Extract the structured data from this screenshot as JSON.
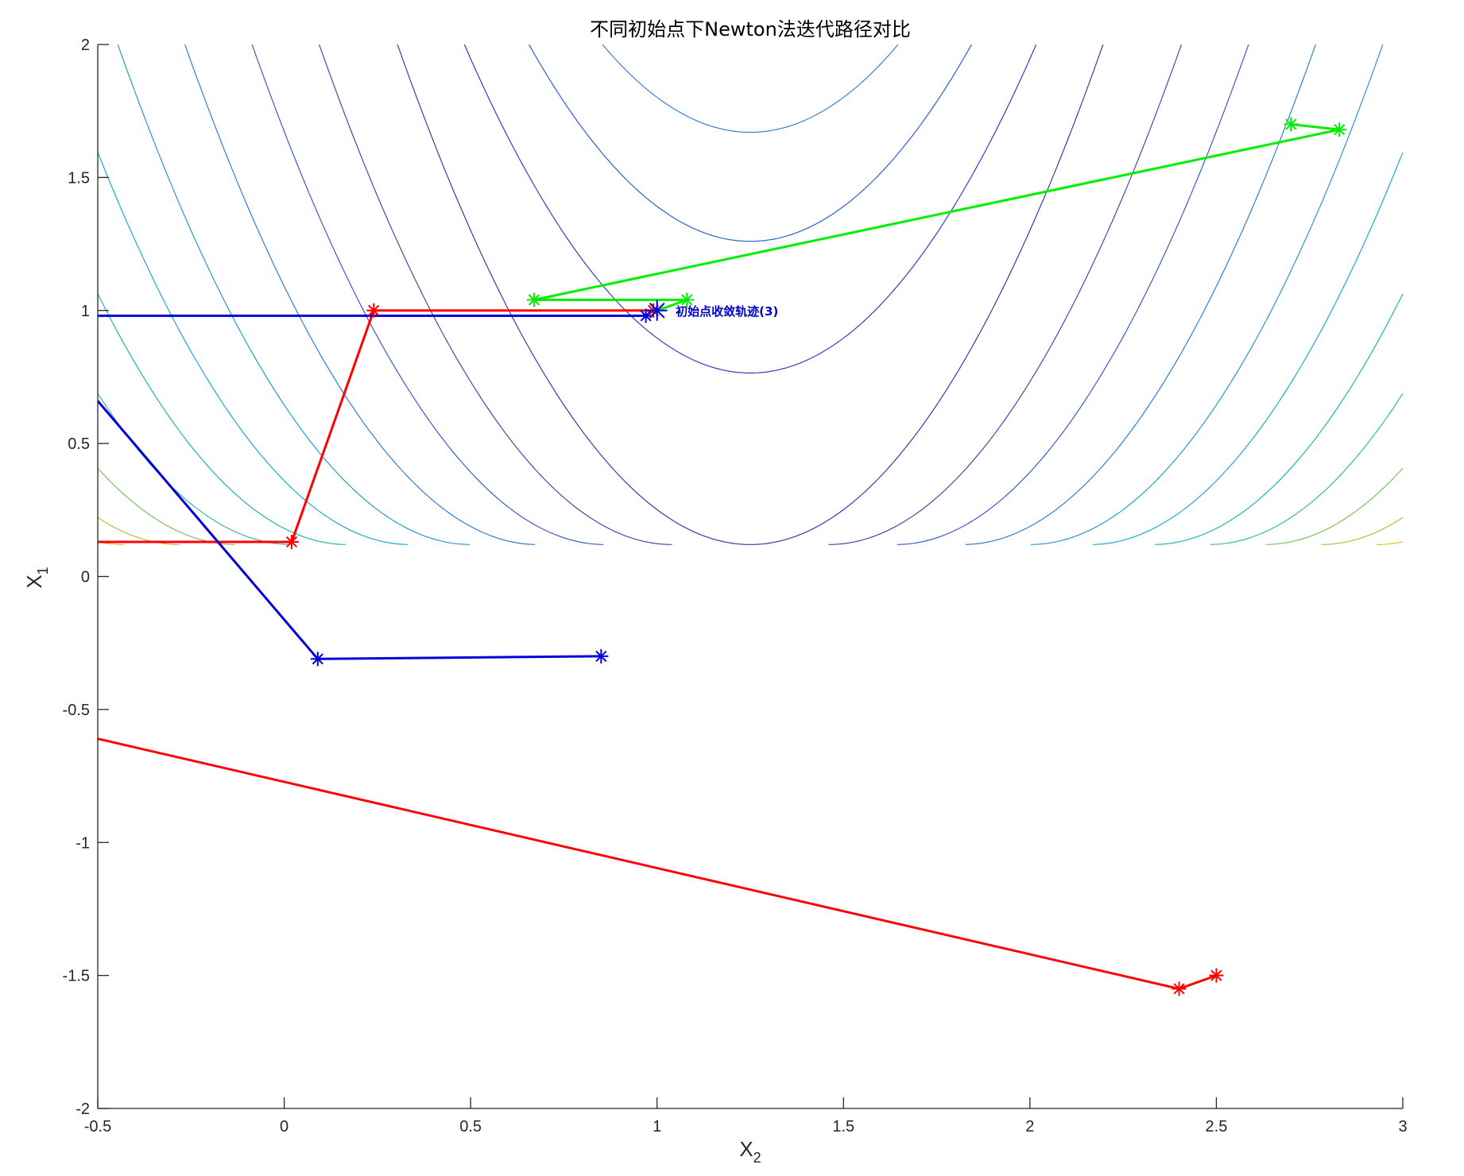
{
  "chart_data": {
    "type": "line",
    "title": "不同初始点下Newton法迭代路径对比",
    "xlabel": {
      "main": "X",
      "sub": "2"
    },
    "ylabel": {
      "main": "X",
      "sub": "1"
    },
    "xlim": [
      -0.5,
      3
    ],
    "ylim": [
      -2,
      2
    ],
    "xticks": [
      -0.5,
      0,
      0.5,
      1,
      1.5,
      2,
      2.5,
      3
    ],
    "yticks": [
      -2,
      -1.5,
      -1,
      -0.5,
      0,
      0.5,
      1,
      1.5,
      2
    ],
    "xtick_labels": [
      "-0.5",
      "0",
      "0.5",
      "1",
      "1.5",
      "2",
      "2.5",
      "3"
    ],
    "ytick_labels": [
      "-2",
      "-1.5",
      "-1",
      "-0.5",
      "0",
      "0.5",
      "1",
      "1.5",
      "2"
    ],
    "grid": false,
    "contour": {
      "vertex": [
        1.25,
        0.12
      ],
      "curves": [
        {
          "a": 0.0,
          "c": 1.55,
          "color": "#3d7fd8"
        },
        {
          "a": 0.0,
          "c": 1.14,
          "color": "#2f5fcf"
        },
        {
          "a": 0.0,
          "c": 0.645,
          "color": "#3340c0"
        },
        {
          "a": 0.0,
          "c": 0.0,
          "color": "#3b3aa8"
        },
        {
          "a": 0.35,
          "c": 0.0,
          "color": "#4848a8"
        },
        {
          "a": 0.65,
          "c": 0.0,
          "color": "#3c5cc8"
        },
        {
          "a": 0.95,
          "c": 0.0,
          "color": "#2f7ed6"
        },
        {
          "a": 1.25,
          "c": 0.0,
          "color": "#2a98d0"
        },
        {
          "a": 1.52,
          "c": 0.0,
          "color": "#21aacb"
        },
        {
          "a": 1.8,
          "c": 0.0,
          "color": "#1fb5b0"
        },
        {
          "a": 2.05,
          "c": 0.0,
          "color": "#3cbc8e"
        },
        {
          "a": 2.3,
          "c": 0.0,
          "color": "#7cbf5e"
        },
        {
          "a": 2.55,
          "c": 0.0,
          "color": "#b5bd3a"
        },
        {
          "a": 2.8,
          "c": 0.0,
          "color": "#e0c02a"
        },
        {
          "a": 3.05,
          "c": 0.0,
          "color": "#f7dc18"
        }
      ]
    },
    "series": [
      {
        "color": "#ff0000",
        "x": [
          2.5,
          2.4,
          -0.5
        ],
        "y": [
          -1.5,
          -1.55,
          -0.61
        ]
      },
      {
        "color": "#ff0000",
        "x": [
          -0.5,
          0.02,
          0.24,
          0.99
        ],
        "y": [
          0.13,
          0.13,
          1.0,
          1.0
        ]
      },
      {
        "color": "#00ee00",
        "x": [
          2.7,
          2.83,
          0.67,
          1.08,
          1.0
        ],
        "y": [
          1.7,
          1.68,
          1.04,
          1.04,
          1.0
        ]
      },
      {
        "color": "#0000dd",
        "x": [
          0.85,
          0.09,
          -0.5
        ],
        "y": [
          -0.3,
          -0.31,
          0.66
        ]
      },
      {
        "color": "#0000dd",
        "x": [
          -0.5,
          0.97
        ],
        "y": [
          0.98,
          0.98
        ]
      }
    ],
    "final_point": {
      "x": 1.0,
      "y": 1.0,
      "color": "#0000dd"
    },
    "annotation": {
      "text": "初始点收敛轨迹(3)",
      "x": 1.05,
      "y": 1.0
    }
  }
}
